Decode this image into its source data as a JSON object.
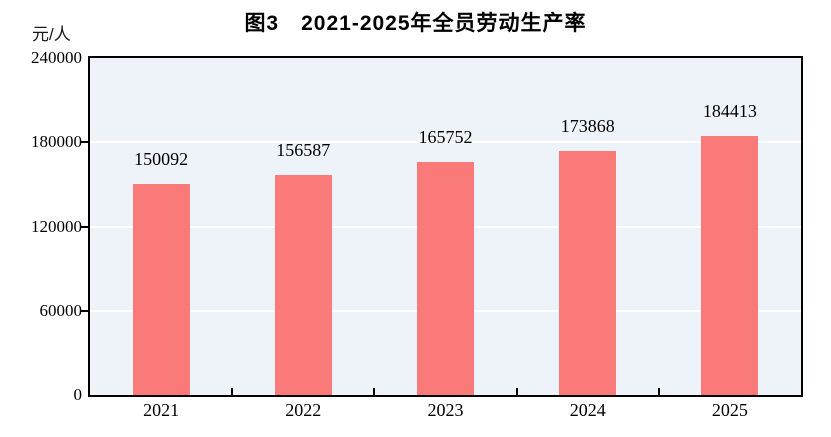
{
  "title": "图3　2021-2025年全员劳动生产率",
  "y_unit_label": "元/人",
  "chart_data": {
    "type": "bar",
    "title": "图3　2021-2025年全员劳动生产率",
    "categories": [
      "2021",
      "2022",
      "2023",
      "2024",
      "2025"
    ],
    "values": [
      150092,
      156587,
      165752,
      173868,
      184413
    ],
    "data_labels": [
      "150092",
      "156587",
      "165752",
      "173868",
      "184413"
    ],
    "xlabel": "",
    "ylabel": "元/人",
    "ylim": [
      0,
      240000
    ],
    "ytick_values": [
      0,
      60000,
      120000,
      180000,
      240000
    ],
    "ytick_labels": [
      "0",
      "60000",
      "120000",
      "180000",
      "240000"
    ],
    "gridlines": "horizontal, white, at interior y ticks, behind bars",
    "legend": "none",
    "colors": {
      "bar_fill": "#FA7A7A",
      "plot_background": "#EDF3F8",
      "plot_border": "#000000",
      "gridline": "#FFFFFF",
      "text": "#000000"
    }
  }
}
